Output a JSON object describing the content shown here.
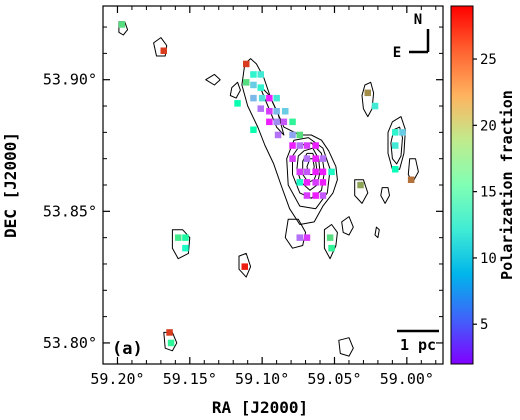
{
  "chart_data": {
    "type": "scatter",
    "panel_label": "(a)",
    "xlabel": "RA [J2000]",
    "ylabel": "DEC [J2000]",
    "colorbar_label": "Polarization fraction",
    "xlim": [
      59.21,
      58.975
    ],
    "ylim": [
      53.792,
      53.928
    ],
    "x_ticks": [
      59.2,
      59.15,
      59.1,
      59.05,
      59.0
    ],
    "x_tick_labels": [
      "59.20°",
      "59.15°",
      "59.10°",
      "59.05°",
      "59.00°"
    ],
    "y_ticks": [
      53.8,
      53.85,
      53.9
    ],
    "y_tick_labels": [
      "53.80°",
      "53.85°",
      "53.90°"
    ],
    "colorbar": {
      "min": 2,
      "max": 29,
      "ticks": [
        5,
        10,
        15,
        20,
        25
      ],
      "colormap": "rainbow"
    },
    "compass": {
      "north": "N",
      "east": "E"
    },
    "scalebar_label": "1 pc",
    "contours": [
      {
        "name": "main-filament",
        "level": 1,
        "points": [
          [
            59.112,
            53.906
          ],
          [
            59.108,
            53.908
          ],
          [
            59.104,
            53.906
          ],
          [
            59.099,
            53.901
          ],
          [
            59.094,
            53.893
          ],
          [
            59.085,
            53.882
          ],
          [
            59.074,
            53.879
          ],
          [
            59.066,
            53.879
          ],
          [
            59.059,
            53.877
          ],
          [
            59.054,
            53.873
          ],
          [
            59.049,
            53.867
          ],
          [
            59.048,
            53.862
          ],
          [
            59.051,
            53.857
          ],
          [
            59.058,
            53.852
          ],
          [
            59.064,
            53.846
          ],
          [
            59.074,
            53.845
          ],
          [
            59.081,
            53.851
          ],
          [
            59.087,
            53.86
          ],
          [
            59.092,
            53.868
          ],
          [
            59.098,
            53.875
          ],
          [
            59.103,
            53.882
          ],
          [
            59.11,
            53.89
          ],
          [
            59.114,
            53.898
          ]
        ]
      },
      {
        "name": "core-level-2",
        "level": 2,
        "points": [
          [
            59.078,
            53.877
          ],
          [
            59.068,
            53.878
          ],
          [
            59.058,
            53.874
          ],
          [
            59.053,
            53.866
          ],
          [
            59.055,
            53.857
          ],
          [
            59.063,
            53.851
          ],
          [
            59.074,
            53.852
          ],
          [
            59.082,
            53.86
          ],
          [
            59.083,
            53.87
          ]
        ]
      },
      {
        "name": "core-level-3",
        "level": 3,
        "points": [
          [
            59.074,
            53.875
          ],
          [
            59.066,
            53.876
          ],
          [
            59.059,
            53.872
          ],
          [
            59.057,
            53.865
          ],
          [
            59.059,
            53.858
          ],
          [
            59.066,
            53.855
          ],
          [
            59.074,
            53.857
          ],
          [
            59.079,
            53.864
          ],
          [
            59.079,
            53.871
          ]
        ]
      },
      {
        "name": "core-level-4",
        "level": 4,
        "points": [
          [
            59.071,
            53.873
          ],
          [
            59.065,
            53.874
          ],
          [
            59.061,
            53.87
          ],
          [
            59.06,
            53.865
          ],
          [
            59.062,
            53.86
          ],
          [
            59.067,
            53.858
          ],
          [
            59.073,
            53.861
          ],
          [
            59.076,
            53.866
          ],
          [
            59.075,
            53.871
          ]
        ]
      },
      {
        "name": "core-level-5",
        "level": 5,
        "points": [
          [
            59.069,
            53.872
          ],
          [
            59.065,
            53.872
          ],
          [
            59.063,
            53.869
          ],
          [
            59.062,
            53.865
          ],
          [
            59.064,
            53.862
          ],
          [
            59.068,
            53.861
          ],
          [
            59.072,
            53.864
          ],
          [
            59.072,
            53.869
          ]
        ]
      },
      {
        "name": "core-level-6",
        "level": 6,
        "points": [
          [
            59.067,
            53.87
          ],
          [
            59.065,
            53.87
          ],
          [
            59.064,
            53.867
          ],
          [
            59.065,
            53.864
          ],
          [
            59.068,
            53.864
          ],
          [
            59.069,
            53.867
          ]
        ]
      },
      {
        "name": "inner-ridge",
        "level": 2,
        "points": [
          [
            59.102,
            53.898
          ],
          [
            59.096,
            53.89
          ],
          [
            59.09,
            53.882
          ],
          [
            59.085,
            53.879
          ],
          [
            59.089,
            53.887
          ],
          [
            59.095,
            53.894
          ]
        ]
      },
      {
        "name": "blob-top-left",
        "level": 1,
        "points": [
          [
            59.199,
            53.922
          ],
          [
            59.195,
            53.922
          ],
          [
            59.193,
            53.919
          ],
          [
            59.196,
            53.917
          ],
          [
            59.199,
            53.918
          ]
        ]
      },
      {
        "name": "blob-upper-left",
        "level": 1,
        "points": [
          [
            59.175,
            53.914
          ],
          [
            59.17,
            53.916
          ],
          [
            59.166,
            53.913
          ],
          [
            59.167,
            53.909
          ],
          [
            59.173,
            53.909
          ]
        ]
      },
      {
        "name": "blob-left-mid",
        "level": 1,
        "points": [
          [
            59.139,
            53.9
          ],
          [
            59.133,
            53.902
          ],
          [
            59.129,
            53.9
          ],
          [
            59.133,
            53.898
          ]
        ]
      },
      {
        "name": "blob-mid-left",
        "level": 1,
        "points": [
          [
            59.121,
            53.897
          ],
          [
            59.117,
            53.899
          ],
          [
            59.115,
            53.896
          ],
          [
            59.118,
            53.893
          ],
          [
            59.122,
            53.894
          ]
        ]
      },
      {
        "name": "blob-east-upper",
        "level": 1,
        "points": [
          [
            59.029,
            53.898
          ],
          [
            59.025,
            53.899
          ],
          [
            59.023,
            53.895
          ],
          [
            59.024,
            53.889
          ],
          [
            59.027,
            53.886
          ],
          [
            59.03,
            53.889
          ],
          [
            59.031,
            53.894
          ]
        ]
      },
      {
        "name": "blob-east-ring",
        "level": 1,
        "points": [
          [
            59.01,
            53.884
          ],
          [
            59.004,
            53.886
          ],
          [
            59.001,
            53.881
          ],
          [
            59.002,
            53.872
          ],
          [
            59.005,
            53.866
          ],
          [
            59.01,
            53.866
          ],
          [
            59.013,
            53.872
          ],
          [
            59.013,
            53.88
          ]
        ]
      },
      {
        "name": "blob-east-ring-inner",
        "level": 2,
        "points": [
          [
            59.009,
            53.881
          ],
          [
            59.005,
            53.882
          ],
          [
            59.003,
            53.878
          ],
          [
            59.004,
            53.871
          ],
          [
            59.007,
            53.868
          ],
          [
            59.01,
            53.87
          ],
          [
            59.011,
            53.876
          ]
        ]
      },
      {
        "name": "blob-far-east",
        "level": 1,
        "points": [
          [
            58.998,
            53.87
          ],
          [
            58.994,
            53.87
          ],
          [
            58.992,
            53.865
          ],
          [
            58.996,
            53.861
          ],
          [
            58.999,
            53.864
          ]
        ]
      },
      {
        "name": "blob-south-right",
        "level": 1,
        "points": [
          [
            59.036,
            53.862
          ],
          [
            59.03,
            53.862
          ],
          [
            59.027,
            53.857
          ],
          [
            59.031,
            53.853
          ],
          [
            59.036,
            53.856
          ]
        ]
      },
      {
        "name": "blob-east-small",
        "level": 1,
        "points": [
          [
            59.017,
            53.859
          ],
          [
            59.013,
            53.859
          ],
          [
            59.012,
            53.856
          ],
          [
            59.015,
            53.853
          ],
          [
            59.018,
            53.856
          ]
        ]
      },
      {
        "name": "blob-middle-south",
        "level": 1,
        "points": [
          [
            59.082,
            53.847
          ],
          [
            59.075,
            53.847
          ],
          [
            59.07,
            53.842
          ],
          [
            59.072,
            53.837
          ],
          [
            59.079,
            53.836
          ],
          [
            59.084,
            53.84
          ]
        ]
      },
      {
        "name": "blob-south-center",
        "level": 1,
        "points": [
          [
            59.057,
            53.843
          ],
          [
            59.052,
            53.845
          ],
          [
            59.048,
            53.842
          ],
          [
            59.049,
            53.837
          ],
          [
            59.053,
            53.832
          ],
          [
            59.057,
            53.836
          ]
        ]
      },
      {
        "name": "blob-south-east",
        "level": 1,
        "points": [
          [
            59.045,
            53.846
          ],
          [
            59.04,
            53.848
          ],
          [
            59.037,
            53.844
          ],
          [
            59.04,
            53.841
          ],
          [
            59.044,
            53.842
          ]
        ]
      },
      {
        "name": "blob-tiny-east",
        "level": 1,
        "points": [
          [
            59.021,
            53.844
          ],
          [
            59.019,
            53.843
          ],
          [
            59.02,
            53.84
          ],
          [
            59.022,
            53.841
          ]
        ]
      },
      {
        "name": "blob-left-low",
        "level": 1,
        "points": [
          [
            59.162,
            53.843
          ],
          [
            59.155,
            53.843
          ],
          [
            59.15,
            53.84
          ],
          [
            59.151,
            53.834
          ],
          [
            59.158,
            53.832
          ],
          [
            59.162,
            53.836
          ]
        ]
      },
      {
        "name": "blob-mid-low",
        "level": 1,
        "points": [
          [
            59.116,
            53.833
          ],
          [
            59.111,
            53.834
          ],
          [
            59.108,
            53.829
          ],
          [
            59.111,
            53.825
          ],
          [
            59.116,
            53.828
          ]
        ]
      },
      {
        "name": "blob-bottom-left",
        "level": 1,
        "points": [
          [
            59.168,
            53.804
          ],
          [
            59.162,
            53.804
          ],
          [
            59.159,
            53.8
          ],
          [
            59.162,
            53.797
          ],
          [
            59.167,
            53.798
          ]
        ]
      },
      {
        "name": "blob-bottom-right",
        "level": 1,
        "points": [
          [
            59.047,
            53.801
          ],
          [
            59.04,
            53.802
          ],
          [
            59.037,
            53.798
          ],
          [
            59.04,
            53.795
          ],
          [
            59.046,
            53.796
          ]
        ]
      }
    ],
    "points": [
      {
        "ra": 59.197,
        "dec": 53.921,
        "p": 20
      },
      {
        "ra": 59.168,
        "dec": 53.911,
        "p": 27
      },
      {
        "ra": 59.111,
        "dec": 53.906,
        "p": 27
      },
      {
        "ra": 59.106,
        "dec": 53.902,
        "p": 13
      },
      {
        "ra": 59.101,
        "dec": 53.902,
        "p": 12
      },
      {
        "ra": 59.111,
        "dec": 53.899,
        "p": 20
      },
      {
        "ra": 59.106,
        "dec": 53.898,
        "p": 10
      },
      {
        "ra": 59.101,
        "dec": 53.897,
        "p": 13
      },
      {
        "ra": 59.106,
        "dec": 53.893,
        "p": 9
      },
      {
        "ra": 59.1,
        "dec": 53.893,
        "p": 11
      },
      {
        "ra": 59.095,
        "dec": 53.893,
        "p": 3
      },
      {
        "ra": 59.09,
        "dec": 53.893,
        "p": 12
      },
      {
        "ra": 59.117,
        "dec": 53.891,
        "p": 16
      },
      {
        "ra": 59.101,
        "dec": 53.889,
        "p": 6
      },
      {
        "ra": 59.095,
        "dec": 53.888,
        "p": 4
      },
      {
        "ra": 59.09,
        "dec": 53.888,
        "p": 9
      },
      {
        "ra": 59.084,
        "dec": 53.888,
        "p": 10
      },
      {
        "ra": 59.095,
        "dec": 53.884,
        "p": 3
      },
      {
        "ra": 59.09,
        "dec": 53.884,
        "p": 7
      },
      {
        "ra": 59.085,
        "dec": 53.884,
        "p": 5
      },
      {
        "ra": 59.079,
        "dec": 53.884,
        "p": 18
      },
      {
        "ra": 59.106,
        "dec": 53.881,
        "p": 16
      },
      {
        "ra": 59.089,
        "dec": 53.879,
        "p": 6
      },
      {
        "ra": 59.079,
        "dec": 53.879,
        "p": 8
      },
      {
        "ra": 59.074,
        "dec": 53.879,
        "p": 20
      },
      {
        "ra": 59.079,
        "dec": 53.875,
        "p": 3
      },
      {
        "ra": 59.074,
        "dec": 53.875,
        "p": 6
      },
      {
        "ra": 59.069,
        "dec": 53.875,
        "p": 4
      },
      {
        "ra": 59.063,
        "dec": 53.875,
        "p": 3
      },
      {
        "ra": 59.079,
        "dec": 53.87,
        "p": 4
      },
      {
        "ra": 59.069,
        "dec": 53.87,
        "p": 6
      },
      {
        "ra": 59.063,
        "dec": 53.87,
        "p": 3
      },
      {
        "ra": 59.058,
        "dec": 53.87,
        "p": 6
      },
      {
        "ra": 59.074,
        "dec": 53.865,
        "p": 4
      },
      {
        "ra": 59.069,
        "dec": 53.865,
        "p": 5
      },
      {
        "ra": 59.063,
        "dec": 53.865,
        "p": 3
      },
      {
        "ra": 59.058,
        "dec": 53.865,
        "p": 3
      },
      {
        "ra": 59.052,
        "dec": 53.865,
        "p": 14
      },
      {
        "ra": 59.074,
        "dec": 53.861,
        "p": 14
      },
      {
        "ra": 59.069,
        "dec": 53.861,
        "p": 3
      },
      {
        "ra": 59.063,
        "dec": 53.861,
        "p": 4
      },
      {
        "ra": 59.058,
        "dec": 53.861,
        "p": 3
      },
      {
        "ra": 59.069,
        "dec": 53.856,
        "p": 4
      },
      {
        "ra": 59.063,
        "dec": 53.856,
        "p": 3
      },
      {
        "ra": 59.058,
        "dec": 53.856,
        "p": 5
      },
      {
        "ra": 59.027,
        "dec": 53.895,
        "p": 24
      },
      {
        "ra": 59.022,
        "dec": 53.89,
        "p": 12
      },
      {
        "ra": 59.008,
        "dec": 53.88,
        "p": 13
      },
      {
        "ra": 59.003,
        "dec": 53.88,
        "p": 10
      },
      {
        "ra": 59.008,
        "dec": 53.875,
        "p": 12
      },
      {
        "ra": 59.008,
        "dec": 53.866,
        "p": 15
      },
      {
        "ra": 58.997,
        "dec": 53.862,
        "p": 25
      },
      {
        "ra": 59.032,
        "dec": 53.86,
        "p": 23
      },
      {
        "ra": 59.074,
        "dec": 53.84,
        "p": 6
      },
      {
        "ra": 59.069,
        "dec": 53.84,
        "p": 4
      },
      {
        "ra": 59.053,
        "dec": 53.84,
        "p": 20
      },
      {
        "ra": 59.052,
        "dec": 53.836,
        "p": 18
      },
      {
        "ra": 59.158,
        "dec": 53.84,
        "p": 19
      },
      {
        "ra": 59.153,
        "dec": 53.84,
        "p": 17
      },
      {
        "ra": 59.153,
        "dec": 53.836,
        "p": 14
      },
      {
        "ra": 59.112,
        "dec": 53.829,
        "p": 28
      },
      {
        "ra": 59.164,
        "dec": 53.804,
        "p": 27
      },
      {
        "ra": 59.163,
        "dec": 53.8,
        "p": 18
      }
    ]
  }
}
